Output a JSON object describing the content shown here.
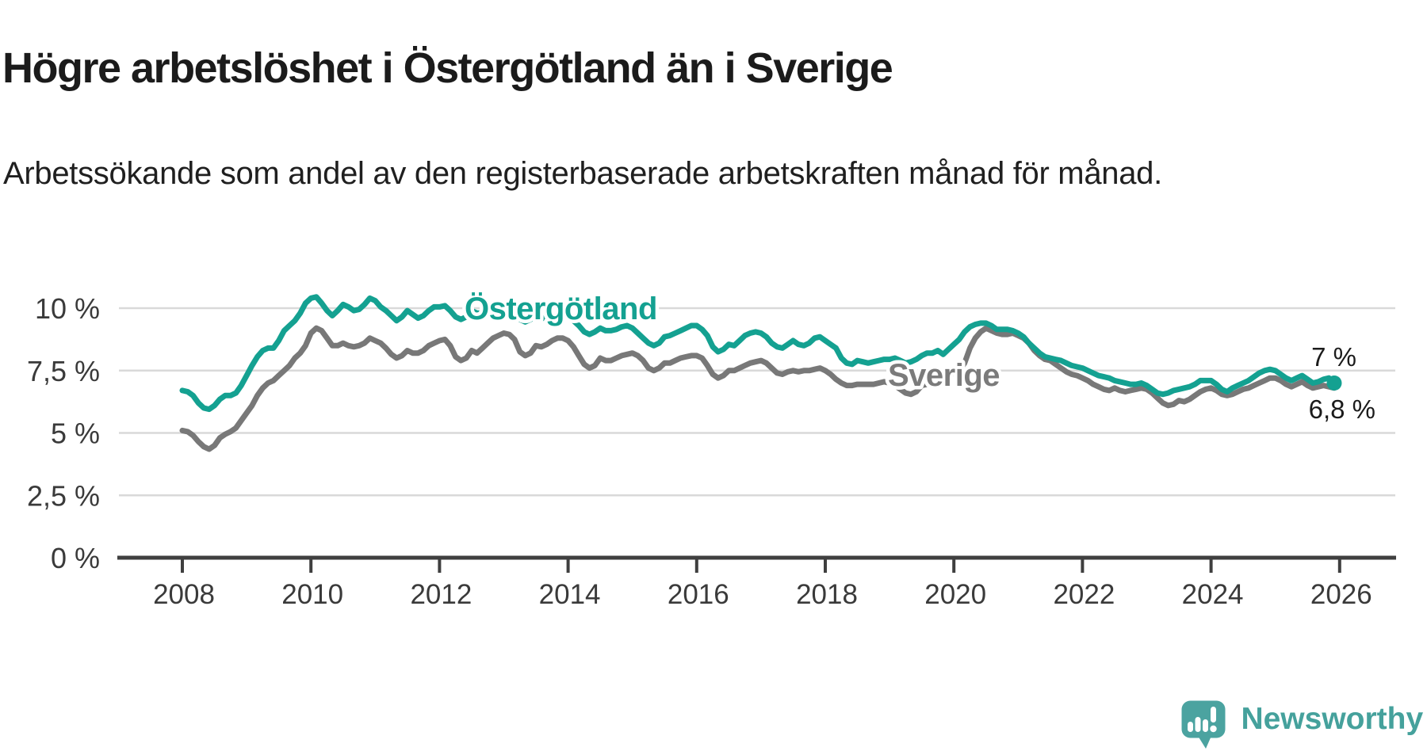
{
  "header": {
    "title": "Högre arbetslöshet i Östergötland än i Sverige",
    "subtitle": "Arbetssökande som andel av den registerbaserade arbetskraften månad för månad."
  },
  "chart_data": {
    "type": "line",
    "title": "Högre arbetslöshet i Östergötland än i Sverige",
    "subtitle": "Arbetssökande som andel av den registerbaserade arbetskraften månad för månad.",
    "unit": "%",
    "grid": "horizontal",
    "legend_position": "inline-labels",
    "x_axis": {
      "start_year": 2008,
      "points_per_year": 12,
      "tick_years": [
        2008,
        2010,
        2012,
        2014,
        2016,
        2018,
        2020,
        2022,
        2024,
        2026
      ],
      "range": [
        2007.0,
        2026.9
      ]
    },
    "y_axis": {
      "range": [
        0,
        11
      ],
      "ticks": [
        {
          "value": 0,
          "label": "0 %"
        },
        {
          "value": 2.5,
          "label": "2,5 %"
        },
        {
          "value": 5,
          "label": "5 %"
        },
        {
          "value": 7.5,
          "label": "7,5 %"
        },
        {
          "value": 10,
          "label": "10 %"
        }
      ]
    },
    "colors": {
      "ostergotland": "#14a191",
      "sverige": "#787878",
      "axis": "#3f3f3f",
      "gridline": "#d9d9d9",
      "end_label_text": "#1b1b1b"
    },
    "series": [
      {
        "name": "Sverige",
        "color": "#787878",
        "end_label": "6,8 %",
        "end_value": 6.8,
        "end_dot": false,
        "values": [
          5.1,
          5.05,
          4.9,
          4.65,
          4.45,
          4.35,
          4.5,
          4.8,
          4.95,
          5.05,
          5.2,
          5.5,
          5.8,
          6.1,
          6.5,
          6.8,
          7.0,
          7.1,
          7.3,
          7.5,
          7.7,
          8.0,
          8.2,
          8.5,
          9.0,
          9.2,
          9.1,
          8.8,
          8.5,
          8.5,
          8.6,
          8.5,
          8.45,
          8.5,
          8.6,
          8.8,
          8.7,
          8.6,
          8.4,
          8.15,
          8.0,
          8.1,
          8.3,
          8.2,
          8.2,
          8.3,
          8.5,
          8.6,
          8.7,
          8.75,
          8.5,
          8.05,
          7.9,
          8.0,
          8.3,
          8.2,
          8.4,
          8.6,
          8.8,
          8.9,
          9.0,
          8.95,
          8.75,
          8.25,
          8.1,
          8.2,
          8.5,
          8.45,
          8.55,
          8.7,
          8.8,
          8.8,
          8.7,
          8.45,
          8.1,
          7.75,
          7.6,
          7.7,
          8.0,
          7.9,
          7.9,
          8.0,
          8.1,
          8.15,
          8.2,
          8.1,
          7.9,
          7.6,
          7.5,
          7.6,
          7.8,
          7.8,
          7.9,
          8.0,
          8.05,
          8.1,
          8.1,
          8.0,
          7.7,
          7.35,
          7.2,
          7.3,
          7.5,
          7.5,
          7.6,
          7.7,
          7.8,
          7.85,
          7.9,
          7.8,
          7.6,
          7.4,
          7.35,
          7.45,
          7.5,
          7.45,
          7.5,
          7.5,
          7.55,
          7.6,
          7.5,
          7.35,
          7.15,
          7.0,
          6.9,
          6.9,
          6.95,
          6.95,
          6.95,
          6.95,
          7.0,
          7.05,
          7.0,
          6.9,
          6.75,
          6.6,
          6.55,
          6.65,
          6.9,
          6.95,
          7.0,
          7.1,
          7.2,
          7.3,
          7.4,
          7.5,
          7.8,
          8.4,
          8.8,
          9.05,
          9.2,
          9.1,
          9.0,
          8.95,
          8.95,
          9.0,
          8.9,
          8.8,
          8.6,
          8.3,
          8.1,
          7.95,
          7.9,
          7.75,
          7.6,
          7.45,
          7.35,
          7.3,
          7.2,
          7.1,
          6.95,
          6.85,
          6.75,
          6.7,
          6.8,
          6.7,
          6.65,
          6.7,
          6.75,
          6.8,
          6.75,
          6.6,
          6.4,
          6.2,
          6.1,
          6.15,
          6.3,
          6.25,
          6.35,
          6.5,
          6.65,
          6.75,
          6.8,
          6.7,
          6.55,
          6.5,
          6.55,
          6.65,
          6.75,
          6.8,
          6.9,
          7.0,
          7.1,
          7.2,
          7.2,
          7.1,
          6.95,
          6.85,
          6.95,
          7.05,
          6.9,
          6.8,
          6.85,
          6.9,
          6.85,
          6.8
        ]
      },
      {
        "name": "Östergötland",
        "color": "#14a191",
        "end_label": "7 %",
        "end_value": 7.0,
        "end_dot": true,
        "values": [
          6.7,
          6.65,
          6.5,
          6.2,
          6.0,
          5.95,
          6.1,
          6.35,
          6.5,
          6.5,
          6.6,
          6.9,
          7.3,
          7.7,
          8.05,
          8.3,
          8.4,
          8.4,
          8.7,
          9.1,
          9.3,
          9.5,
          9.8,
          10.2,
          10.4,
          10.45,
          10.2,
          9.9,
          9.7,
          9.9,
          10.15,
          10.05,
          9.9,
          9.95,
          10.15,
          10.4,
          10.3,
          10.05,
          9.9,
          9.7,
          9.5,
          9.65,
          9.9,
          9.75,
          9.6,
          9.7,
          9.9,
          10.05,
          10.05,
          10.1,
          9.9,
          9.65,
          9.55,
          9.65,
          9.9,
          9.8,
          9.8,
          9.9,
          10.0,
          10.1,
          10.05,
          9.95,
          9.8,
          9.55,
          9.45,
          9.55,
          9.7,
          9.6,
          9.6,
          9.7,
          9.8,
          9.8,
          9.7,
          9.5,
          9.3,
          9.05,
          8.95,
          9.05,
          9.2,
          9.1,
          9.1,
          9.15,
          9.25,
          9.3,
          9.2,
          9.0,
          8.8,
          8.6,
          8.5,
          8.6,
          8.85,
          8.9,
          9.0,
          9.1,
          9.2,
          9.3,
          9.3,
          9.15,
          8.9,
          8.45,
          8.25,
          8.35,
          8.55,
          8.5,
          8.7,
          8.9,
          9.0,
          9.05,
          9.0,
          8.85,
          8.6,
          8.45,
          8.4,
          8.55,
          8.7,
          8.55,
          8.5,
          8.6,
          8.8,
          8.85,
          8.7,
          8.55,
          8.4,
          8.0,
          7.8,
          7.75,
          7.9,
          7.85,
          7.8,
          7.85,
          7.9,
          7.95,
          7.95,
          8.0,
          7.9,
          7.8,
          7.85,
          7.95,
          8.1,
          8.2,
          8.2,
          8.3,
          8.15,
          8.35,
          8.55,
          8.75,
          9.05,
          9.25,
          9.35,
          9.4,
          9.4,
          9.3,
          9.15,
          9.15,
          9.15,
          9.1,
          9.0,
          8.85,
          8.6,
          8.4,
          8.2,
          8.05,
          8.0,
          7.95,
          7.9,
          7.8,
          7.7,
          7.65,
          7.6,
          7.5,
          7.4,
          7.3,
          7.25,
          7.2,
          7.1,
          7.05,
          7.0,
          6.95,
          6.95,
          7.0,
          6.9,
          6.75,
          6.6,
          6.55,
          6.6,
          6.7,
          6.75,
          6.8,
          6.85,
          6.95,
          7.1,
          7.1,
          7.1,
          6.95,
          6.75,
          6.65,
          6.8,
          6.9,
          7.0,
          7.1,
          7.25,
          7.4,
          7.5,
          7.55,
          7.5,
          7.35,
          7.2,
          7.1,
          7.2,
          7.3,
          7.15,
          7.0,
          7.05,
          7.15,
          7.2,
          7.0
        ]
      }
    ]
  },
  "footer": {
    "brand": "Newsworthy"
  }
}
